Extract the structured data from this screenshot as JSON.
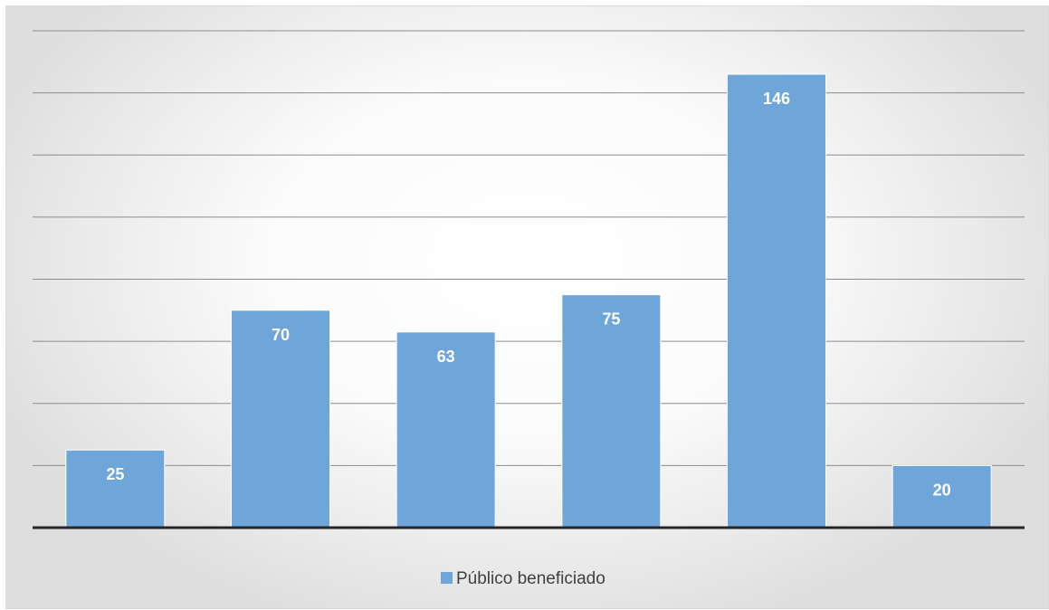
{
  "chart_data": {
    "type": "bar",
    "categories": [
      "",
      "",
      "",
      "",
      "",
      ""
    ],
    "series": [
      {
        "name": "Público beneficiado",
        "values": [
          25,
          70,
          63,
          75,
          146,
          20
        ]
      }
    ],
    "title": "",
    "xlabel": "",
    "ylabel": "",
    "ylim": [
      0,
      160
    ],
    "grid": true,
    "legend": "bottom",
    "colors": {
      "bar": "#6fa6d9",
      "bar_edge": "#ffffff",
      "grid": "#8c8c8c",
      "axis": "#262626",
      "label": "#ffffff"
    }
  }
}
